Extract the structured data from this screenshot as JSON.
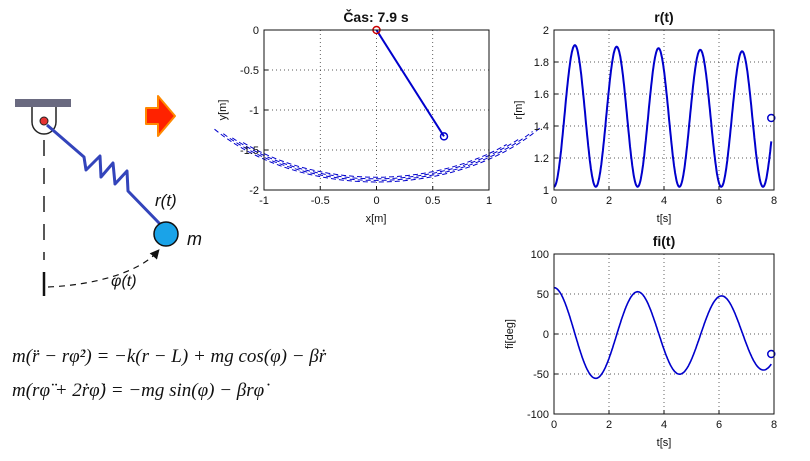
{
  "diagram": {
    "radius_label": "r(t)",
    "mass_label": "m",
    "angle_label": "φ(t)"
  },
  "equations": [
    "m(r̈ − rφ̇²) = −k(r − L) + mg cos(φ) − βṙ",
    "m(rφ̈ + 2ṙφ̇) = −mg sin(φ) − βrφ̇"
  ],
  "colors": {
    "trajectory": "#0000cc",
    "spring": "#3344bb",
    "mass": "#1aa3e8",
    "arrow": "#ff2200",
    "support": "#6a6a80",
    "marker_pivot": "#cc0000"
  },
  "chart_data": [
    {
      "id": "trajectory",
      "type": "line",
      "title": "Čas: 7.9 s",
      "xlabel": "x[m]",
      "ylabel": "y[m]",
      "xlim": [
        -1,
        1
      ],
      "ylim": [
        -2,
        0
      ],
      "xticks": [
        -1,
        -0.5,
        0,
        0.5,
        1
      ],
      "yticks": [
        0,
        -0.5,
        -1,
        -1.5,
        -2
      ],
      "xtick_labels": [
        "-1",
        "-0.5",
        "0",
        "0.5",
        "1"
      ],
      "ytick_labels": [
        "0",
        "-0.5",
        "-1",
        "-1.5",
        "-2"
      ],
      "grid": true,
      "pivot": [
        0,
        0
      ],
      "mass_position": [
        0.6,
        -1.33
      ]
    },
    {
      "id": "r",
      "type": "line",
      "title": "r(t)",
      "xlabel": "t[s]",
      "ylabel": "r[m]",
      "xlim": [
        0,
        8
      ],
      "ylim": [
        1,
        2
      ],
      "xticks": [
        0,
        2,
        4,
        6,
        8
      ],
      "yticks": [
        1,
        1.2,
        1.4,
        1.6,
        1.8,
        2
      ],
      "xtick_labels": [
        "0",
        "2",
        "4",
        "6",
        "8"
      ],
      "ytick_labels": [
        "1",
        "1.2",
        "1.4",
        "1.6",
        "1.8",
        "2"
      ],
      "grid": true,
      "current_point": [
        7.9,
        1.45
      ]
    },
    {
      "id": "fi",
      "type": "line",
      "title": "fi(t)",
      "xlabel": "t[s]",
      "ylabel": "fi[deg]",
      "xlim": [
        0,
        8
      ],
      "ylim": [
        -100,
        100
      ],
      "xticks": [
        0,
        2,
        4,
        6,
        8
      ],
      "yticks": [
        100,
        50,
        0,
        -50,
        -100
      ],
      "xtick_labels": [
        "0",
        "2",
        "4",
        "6",
        "8"
      ],
      "ytick_labels": [
        "100",
        "50",
        "0",
        "-50",
        "-100"
      ],
      "grid": true,
      "current_point": [
        7.9,
        -25
      ]
    }
  ]
}
